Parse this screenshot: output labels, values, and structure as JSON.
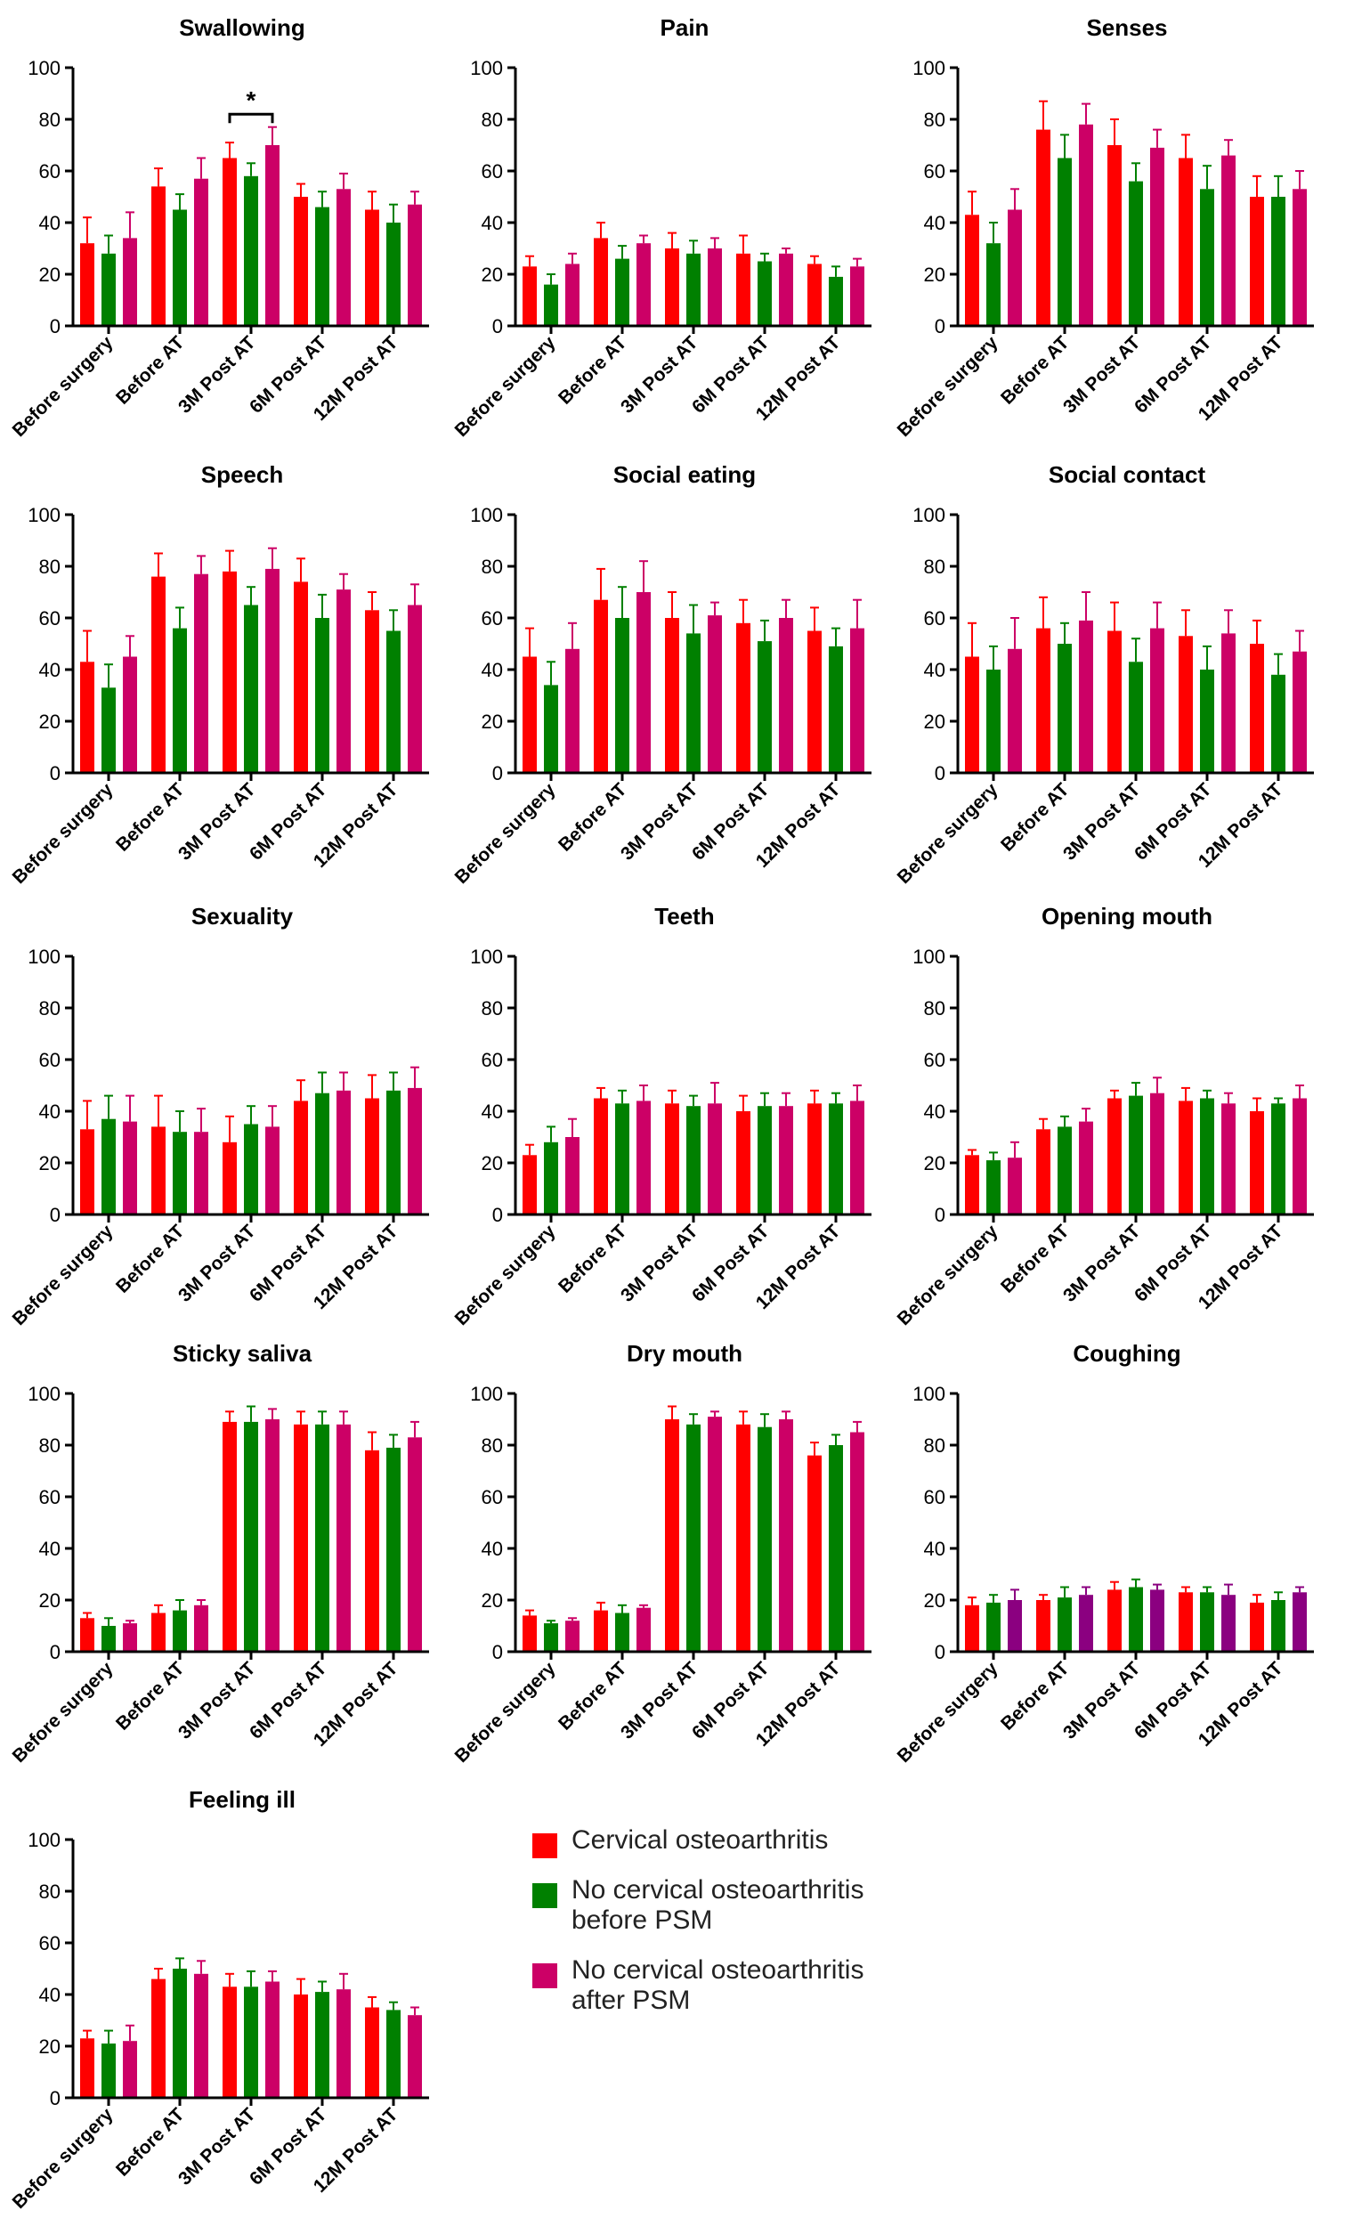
{
  "chart_data": [
    {
      "type": "bar",
      "title": "Swallowing",
      "categories": [
        "Before surgery",
        "Before AT",
        "3M Post AT",
        "6M Post AT",
        "12M Post AT"
      ],
      "ylim": [
        0,
        100
      ],
      "yticks": [
        0,
        20,
        40,
        60,
        80,
        100
      ],
      "series": [
        {
          "values": [
            32,
            54,
            65,
            50,
            45
          ],
          "errors": [
            10,
            7,
            6,
            5,
            7
          ]
        },
        {
          "values": [
            28,
            45,
            58,
            46,
            40
          ],
          "errors": [
            7,
            6,
            5,
            6,
            7
          ]
        },
        {
          "values": [
            34,
            57,
            70,
            53,
            47
          ],
          "errors": [
            10,
            8,
            7,
            6,
            5
          ]
        }
      ],
      "annotation": {
        "text": "*",
        "from_category": 2,
        "from_series": 0,
        "to_series": 2
      }
    },
    {
      "type": "bar",
      "title": "Pain",
      "categories": [
        "Before surgery",
        "Before AT",
        "3M Post AT",
        "6M Post AT",
        "12M Post AT"
      ],
      "ylim": [
        0,
        100
      ],
      "yticks": [
        0,
        20,
        40,
        60,
        80,
        100
      ],
      "series": [
        {
          "values": [
            23,
            34,
            30,
            28,
            24
          ],
          "errors": [
            4,
            6,
            6,
            7,
            3
          ]
        },
        {
          "values": [
            16,
            26,
            28,
            25,
            19
          ],
          "errors": [
            4,
            5,
            5,
            3,
            4
          ]
        },
        {
          "values": [
            24,
            32,
            30,
            28,
            23
          ],
          "errors": [
            4,
            3,
            4,
            2,
            3
          ]
        }
      ]
    },
    {
      "type": "bar",
      "title": "Senses",
      "categories": [
        "Before surgery",
        "Before AT",
        "3M Post AT",
        "6M Post AT",
        "12M Post AT"
      ],
      "ylim": [
        0,
        100
      ],
      "yticks": [
        0,
        20,
        40,
        60,
        80,
        100
      ],
      "series": [
        {
          "values": [
            43,
            76,
            70,
            65,
            50
          ],
          "errors": [
            9,
            11,
            10,
            9,
            8
          ]
        },
        {
          "values": [
            32,
            65,
            56,
            53,
            50
          ],
          "errors": [
            8,
            9,
            7,
            9,
            8
          ]
        },
        {
          "values": [
            45,
            78,
            69,
            66,
            53
          ],
          "errors": [
            8,
            8,
            7,
            6,
            7
          ]
        }
      ]
    },
    {
      "type": "bar",
      "title": "Speech",
      "categories": [
        "Before surgery",
        "Before AT",
        "3M Post AT",
        "6M Post AT",
        "12M Post AT"
      ],
      "ylim": [
        0,
        100
      ],
      "yticks": [
        0,
        20,
        40,
        60,
        80,
        100
      ],
      "series": [
        {
          "values": [
            43,
            76,
            78,
            74,
            63
          ],
          "errors": [
            12,
            9,
            8,
            9,
            7
          ]
        },
        {
          "values": [
            33,
            56,
            65,
            60,
            55
          ],
          "errors": [
            9,
            8,
            7,
            9,
            8
          ]
        },
        {
          "values": [
            45,
            77,
            79,
            71,
            65
          ],
          "errors": [
            8,
            7,
            8,
            6,
            8
          ]
        }
      ]
    },
    {
      "type": "bar",
      "title": "Social eating",
      "categories": [
        "Before surgery",
        "Before AT",
        "3M Post AT",
        "6M Post AT",
        "12M Post AT"
      ],
      "ylim": [
        0,
        100
      ],
      "yticks": [
        0,
        20,
        40,
        60,
        80,
        100
      ],
      "series": [
        {
          "values": [
            45,
            67,
            60,
            58,
            55
          ],
          "errors": [
            11,
            12,
            10,
            9,
            9
          ]
        },
        {
          "values": [
            34,
            60,
            54,
            51,
            49
          ],
          "errors": [
            9,
            12,
            11,
            8,
            7
          ]
        },
        {
          "values": [
            48,
            70,
            61,
            60,
            56
          ],
          "errors": [
            10,
            12,
            5,
            7,
            11
          ]
        }
      ]
    },
    {
      "type": "bar",
      "title": "Social contact",
      "categories": [
        "Before surgery",
        "Before AT",
        "3M Post AT",
        "6M Post AT",
        "12M Post AT"
      ],
      "ylim": [
        0,
        100
      ],
      "yticks": [
        0,
        20,
        40,
        60,
        80,
        100
      ],
      "series": [
        {
          "values": [
            45,
            56,
            55,
            53,
            50
          ],
          "errors": [
            13,
            12,
            11,
            10,
            9
          ]
        },
        {
          "values": [
            40,
            50,
            43,
            40,
            38
          ],
          "errors": [
            9,
            8,
            9,
            9,
            8
          ]
        },
        {
          "values": [
            48,
            59,
            56,
            54,
            47
          ],
          "errors": [
            12,
            11,
            10,
            9,
            8
          ]
        }
      ]
    },
    {
      "type": "bar",
      "title": "Sexuality",
      "categories": [
        "Before surgery",
        "Before AT",
        "3M Post AT",
        "6M Post AT",
        "12M Post AT"
      ],
      "ylim": [
        0,
        100
      ],
      "yticks": [
        0,
        20,
        40,
        60,
        80,
        100
      ],
      "series": [
        {
          "values": [
            33,
            34,
            28,
            44,
            45
          ],
          "errors": [
            11,
            12,
            10,
            8,
            9
          ]
        },
        {
          "values": [
            37,
            32,
            35,
            47,
            48
          ],
          "errors": [
            9,
            8,
            7,
            8,
            7
          ]
        },
        {
          "values": [
            36,
            32,
            34,
            48,
            49
          ],
          "errors": [
            10,
            9,
            8,
            7,
            8
          ]
        }
      ]
    },
    {
      "type": "bar",
      "title": "Teeth",
      "categories": [
        "Before surgery",
        "Before AT",
        "3M Post AT",
        "6M Post AT",
        "12M Post AT"
      ],
      "ylim": [
        0,
        100
      ],
      "yticks": [
        0,
        20,
        40,
        60,
        80,
        100
      ],
      "series": [
        {
          "values": [
            23,
            45,
            43,
            40,
            43
          ],
          "errors": [
            4,
            4,
            5,
            6,
            5
          ]
        },
        {
          "values": [
            28,
            43,
            42,
            42,
            43
          ],
          "errors": [
            6,
            5,
            4,
            5,
            4
          ]
        },
        {
          "values": [
            30,
            44,
            43,
            42,
            44
          ],
          "errors": [
            7,
            6,
            8,
            5,
            6
          ]
        }
      ]
    },
    {
      "type": "bar",
      "title": "Opening mouth",
      "categories": [
        "Before surgery",
        "Before AT",
        "3M Post AT",
        "6M Post AT",
        "12M Post AT"
      ],
      "ylim": [
        0,
        100
      ],
      "yticks": [
        0,
        20,
        40,
        60,
        80,
        100
      ],
      "series": [
        {
          "values": [
            23,
            33,
            45,
            44,
            40
          ],
          "errors": [
            2,
            4,
            3,
            5,
            5
          ]
        },
        {
          "values": [
            21,
            34,
            46,
            45,
            43
          ],
          "errors": [
            3,
            4,
            5,
            3,
            2
          ]
        },
        {
          "values": [
            22,
            36,
            47,
            43,
            45
          ],
          "errors": [
            6,
            5,
            6,
            4,
            5
          ]
        }
      ]
    },
    {
      "type": "bar",
      "title": "Sticky saliva",
      "categories": [
        "Before surgery",
        "Before AT",
        "3M Post AT",
        "6M Post AT",
        "12M Post AT"
      ],
      "ylim": [
        0,
        100
      ],
      "yticks": [
        0,
        20,
        40,
        60,
        80,
        100
      ],
      "series": [
        {
          "values": [
            13,
            15,
            89,
            88,
            78
          ],
          "errors": [
            2,
            3,
            4,
            5,
            7
          ]
        },
        {
          "values": [
            10,
            16,
            89,
            88,
            79
          ],
          "errors": [
            3,
            4,
            6,
            5,
            5
          ]
        },
        {
          "values": [
            11,
            18,
            90,
            88,
            83
          ],
          "errors": [
            1,
            2,
            4,
            5,
            6
          ]
        }
      ]
    },
    {
      "type": "bar",
      "title": "Dry mouth",
      "categories": [
        "Before surgery",
        "Before AT",
        "3M Post AT",
        "6M Post AT",
        "12M Post AT"
      ],
      "ylim": [
        0,
        100
      ],
      "yticks": [
        0,
        20,
        40,
        60,
        80,
        100
      ],
      "series": [
        {
          "values": [
            14,
            16,
            90,
            88,
            76
          ],
          "errors": [
            2,
            3,
            5,
            5,
            5
          ]
        },
        {
          "values": [
            11,
            15,
            88,
            87,
            80
          ],
          "errors": [
            1,
            3,
            4,
            5,
            4
          ]
        },
        {
          "values": [
            12,
            17,
            91,
            90,
            85
          ],
          "errors": [
            1,
            1,
            2,
            3,
            4
          ]
        }
      ]
    },
    {
      "type": "bar",
      "title": "Coughing",
      "categories": [
        "Before surgery",
        "Before AT",
        "3M Post AT",
        "6M Post AT",
        "12M Post AT"
      ],
      "ylim": [
        0,
        100
      ],
      "yticks": [
        0,
        20,
        40,
        60,
        80,
        100
      ],
      "series": [
        {
          "values": [
            18,
            20,
            24,
            23,
            19
          ],
          "errors": [
            3,
            2,
            3,
            2,
            3
          ]
        },
        {
          "values": [
            19,
            21,
            25,
            23,
            20
          ],
          "errors": [
            3,
            4,
            3,
            2,
            3
          ]
        },
        {
          "values": [
            20,
            22,
            24,
            22,
            23
          ],
          "errors": [
            4,
            3,
            2,
            4,
            2
          ]
        }
      ]
    },
    {
      "type": "bar",
      "title": "Feeling ill",
      "categories": [
        "Before surgery",
        "Before AT",
        "3M Post AT",
        "6M Post AT",
        "12M Post AT"
      ],
      "ylim": [
        0,
        100
      ],
      "yticks": [
        0,
        20,
        40,
        60,
        80,
        100
      ],
      "series": [
        {
          "values": [
            23,
            46,
            43,
            40,
            35
          ],
          "errors": [
            3,
            4,
            5,
            6,
            4
          ]
        },
        {
          "values": [
            21,
            50,
            43,
            41,
            34
          ],
          "errors": [
            5,
            4,
            6,
            4,
            3
          ]
        },
        {
          "values": [
            22,
            48,
            45,
            42,
            32
          ],
          "errors": [
            6,
            5,
            4,
            6,
            3
          ]
        }
      ]
    }
  ],
  "colors": {
    "cervical": "#ff0000",
    "no_cervical_before_psm": "#008000",
    "no_cervical_after_psm": "#cc0066",
    "coughing_after_psm": "#8b0080",
    "axis": "#000000"
  },
  "legend": {
    "placement": "bottom-right",
    "items": [
      {
        "label": "Cervical osteoarthritis",
        "color": "#ff0000"
      },
      {
        "label": "No cervical osteoarthritis\nbefore PSM",
        "color": "#008000"
      },
      {
        "label": "No cervical osteoarthritis\nafter PSM",
        "color": "#cc0066"
      }
    ]
  }
}
